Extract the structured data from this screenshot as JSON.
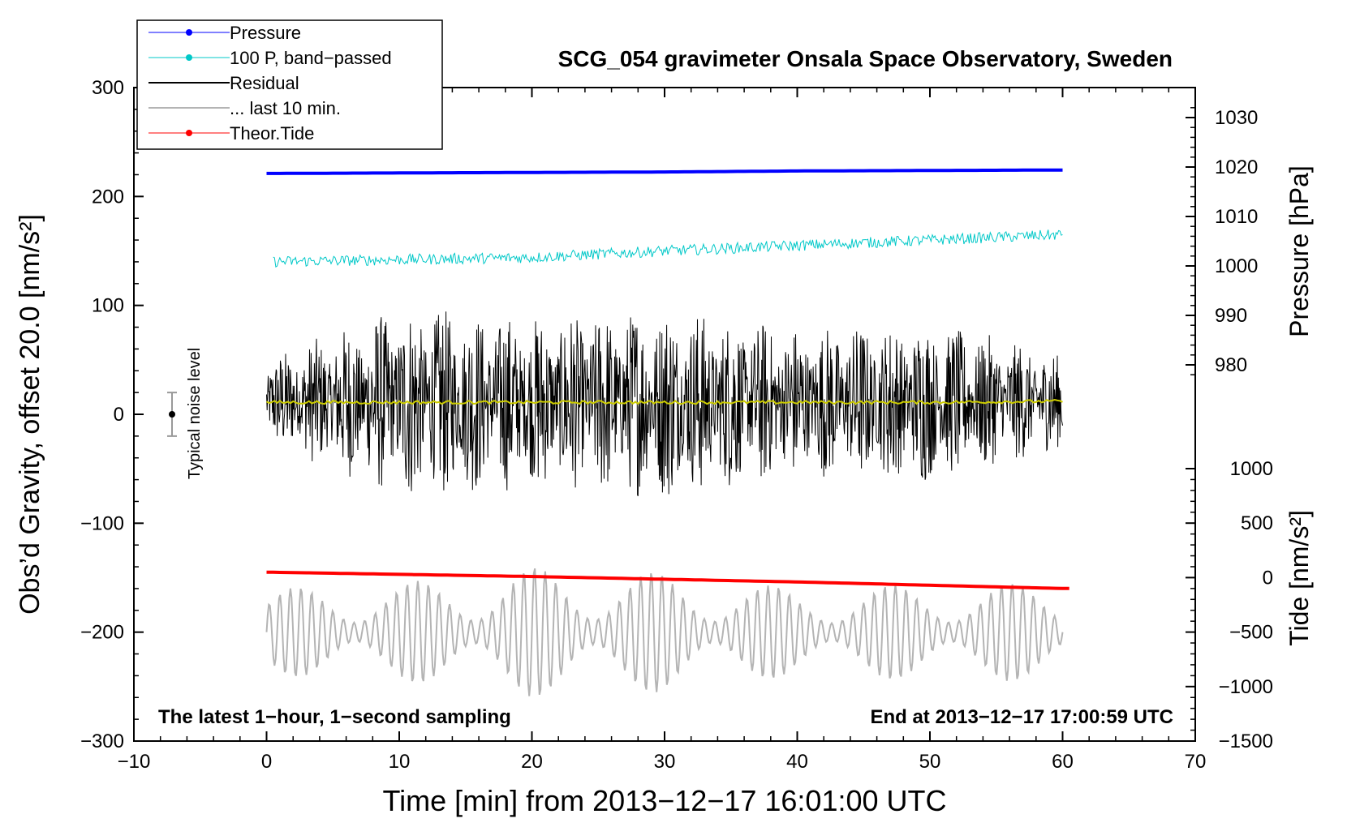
{
  "chart_data": {
    "type": "line",
    "title": "SCG_054 gravimeter Onsala Space Observatory, Sweden",
    "xlabel": "Time [min] from 2013−12−17 16:01:00 UTC",
    "ylabel_left": "Obs’d Gravity, offset 20.0 [nm/s²]",
    "ylabel_pressure": "Pressure [hPa]",
    "ylabel_tide": "Tide [nm/s²]",
    "xlim": [
      -10,
      70
    ],
    "ylim_left": [
      -300,
      300
    ],
    "x_ticks": [
      "−10",
      "0",
      "10",
      "20",
      "30",
      "40",
      "50",
      "60",
      "70"
    ],
    "x_tick_values": [
      -10,
      0,
      10,
      20,
      30,
      40,
      50,
      60,
      70
    ],
    "y_left_ticks": [
      "300",
      "200",
      "100",
      "0",
      "−100",
      "−200",
      "−300"
    ],
    "y_left_tick_values": [
      300,
      200,
      100,
      0,
      -100,
      -200,
      -300
    ],
    "pressure_ticks": [
      "1030",
      "1020",
      "1010",
      "1000",
      "990",
      "980"
    ],
    "pressure_tick_values": [
      1030,
      1020,
      1010,
      1000,
      990,
      980
    ],
    "tide_ticks": [
      "1000",
      "500",
      "0",
      "−500",
      "−1000",
      "−1500"
    ],
    "tide_tick_values": [
      1000,
      500,
      0,
      -500,
      -1000,
      -1500
    ],
    "legend": [
      {
        "label": "Pressure",
        "color": "#0000ff",
        "marker": true
      },
      {
        "label": "100 P, band−passed",
        "color": "#00c8c8",
        "marker": true
      },
      {
        "label": "Residual",
        "color": "#000000",
        "marker": false
      },
      {
        "label": "... last 10 min.",
        "color": "#b4b4b4",
        "marker": false
      },
      {
        "label": "Theor.Tide",
        "color": "#ff0000",
        "marker": true
      }
    ],
    "legend_position": "top-left",
    "noise_label": "Typical noise level",
    "noise_level": 20,
    "annotation_left": "The latest 1−hour, 1−second sampling",
    "annotation_right": "End at 2013−12−17 17:00:59 UTC",
    "series": [
      {
        "name": "Pressure",
        "axis": "pressure",
        "color": "#0000ff",
        "x": [
          0,
          10,
          20,
          30,
          40,
          50,
          60
        ],
        "values": [
          1018.7,
          1018.8,
          1018.9,
          1019.0,
          1019.2,
          1019.3,
          1019.4
        ]
      },
      {
        "name": "100 P, band-passed",
        "axis": "left",
        "color": "#00c8c8",
        "x": [
          0,
          10,
          20,
          30,
          40,
          50,
          60
        ],
        "values": [
          140,
          142,
          144,
          150,
          155,
          160,
          165
        ]
      },
      {
        "name": "Residual",
        "axis": "left",
        "color": "#000000",
        "x": [
          0,
          10,
          20,
          30,
          40,
          50,
          60
        ],
        "values": [
          12,
          11,
          11,
          11,
          11,
          11,
          12
        ],
        "envelope": [
          40,
          90,
          80,
          90,
          70,
          75,
          45
        ]
      },
      {
        "name": "Residual smoothed",
        "axis": "left",
        "color": "#cccc00",
        "x": [
          0,
          10,
          20,
          30,
          40,
          50,
          60
        ],
        "values": [
          11,
          11,
          11,
          11,
          11,
          11,
          12
        ]
      },
      {
        "name": "... last 10 min.",
        "axis": "left",
        "color": "#b4b4b4",
        "x": [
          0,
          10,
          20,
          30,
          40,
          50,
          60
        ],
        "values": [
          -200,
          -200,
          -200,
          -200,
          -200,
          -200,
          -200
        ],
        "envelope": [
          40,
          45,
          60,
          55,
          40,
          45,
          45
        ]
      },
      {
        "name": "Theor.Tide",
        "axis": "tide",
        "color": "#ff0000",
        "x": [
          0,
          10,
          20,
          30,
          40,
          50,
          60
        ],
        "values": [
          50,
          30,
          10,
          -15,
          -40,
          -70,
          -100
        ]
      }
    ]
  }
}
